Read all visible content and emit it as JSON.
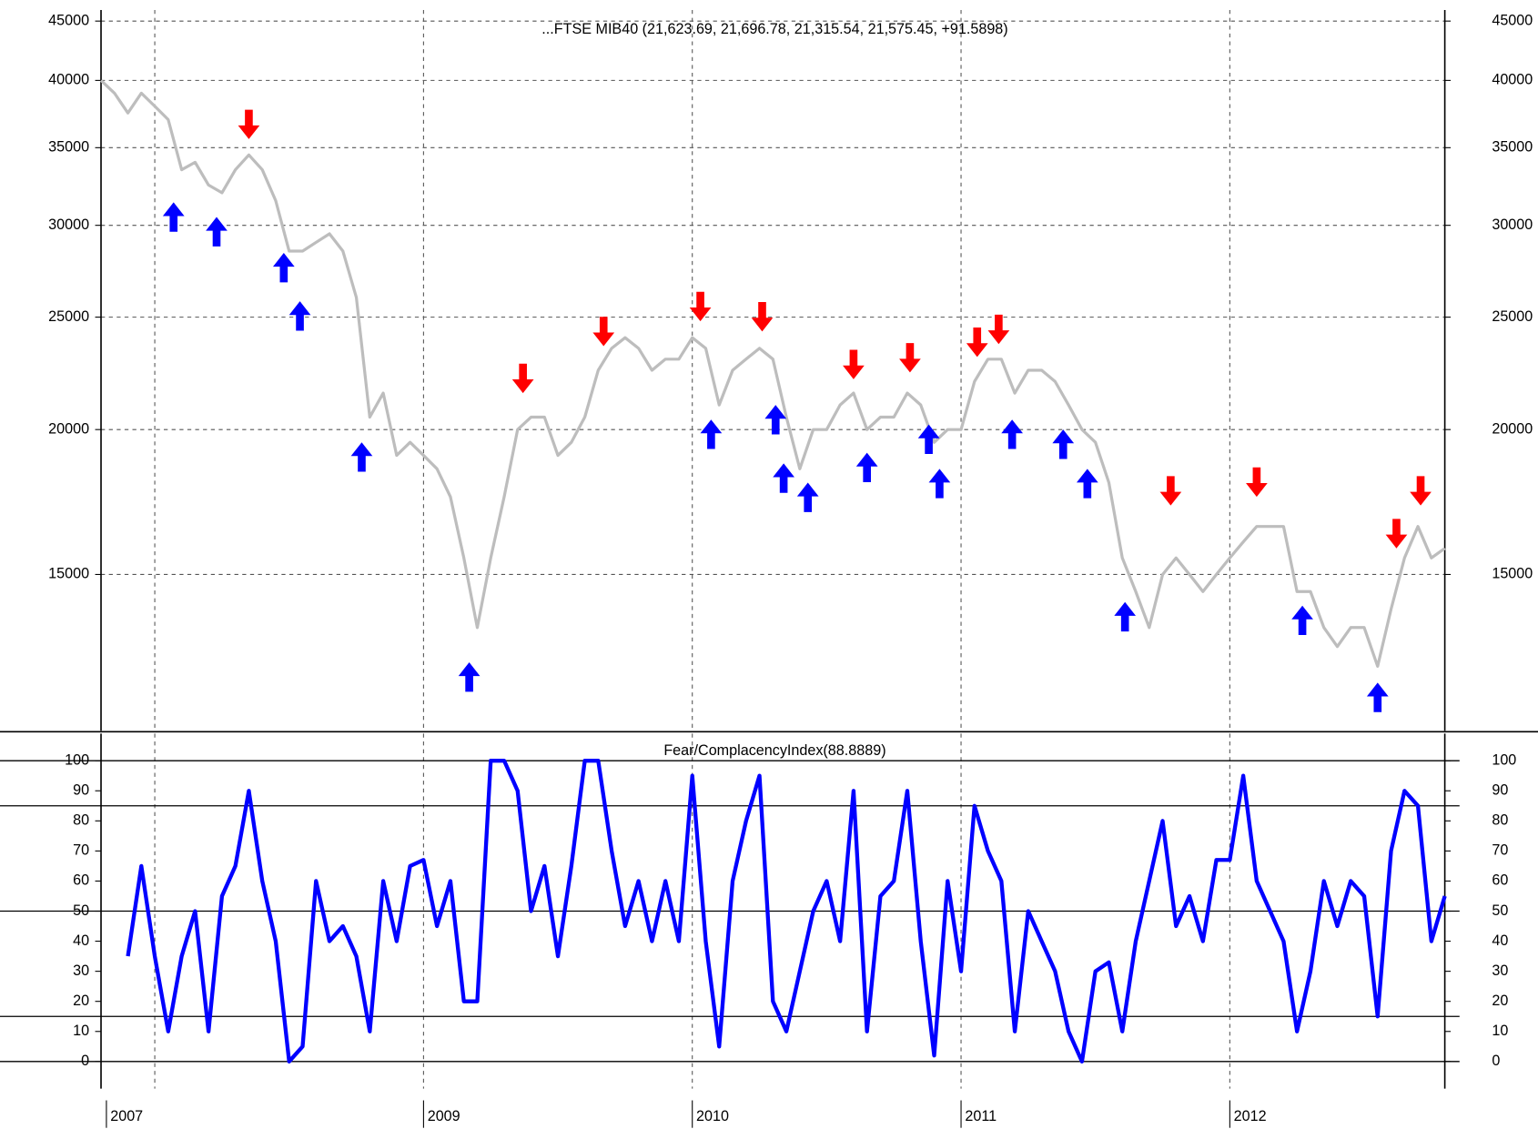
{
  "chart_data": [
    {
      "type": "line",
      "title": "...FTSE MIB40 (21,623.69, 21,696.78, 21,315.54, 21,575.45, +91.5898)",
      "log": true,
      "xlim": [
        2007.8,
        2012.8
      ],
      "ylim": [
        11000,
        46000
      ],
      "yticks": [
        15000,
        20000,
        25000,
        30000,
        35000,
        40000,
        45000
      ],
      "xgrid": [
        2008,
        2009,
        2010,
        2011,
        2012
      ],
      "grid": true,
      "x": [
        2007.8,
        2007.85,
        2007.9,
        2007.95,
        2008.0,
        2008.05,
        2008.1,
        2008.15,
        2008.2,
        2008.25,
        2008.3,
        2008.35,
        2008.4,
        2008.45,
        2008.5,
        2008.55,
        2008.6,
        2008.65,
        2008.7,
        2008.75,
        2008.8,
        2008.85,
        2008.9,
        2008.95,
        2009.0,
        2009.05,
        2009.1,
        2009.15,
        2009.2,
        2009.25,
        2009.3,
        2009.35,
        2009.4,
        2009.45,
        2009.5,
        2009.55,
        2009.6,
        2009.65,
        2009.7,
        2009.75,
        2009.8,
        2009.85,
        2009.9,
        2009.95,
        2010.0,
        2010.05,
        2010.1,
        2010.15,
        2010.2,
        2010.25,
        2010.3,
        2010.35,
        2010.4,
        2010.45,
        2010.5,
        2010.55,
        2010.6,
        2010.65,
        2010.7,
        2010.75,
        2010.8,
        2010.85,
        2010.9,
        2010.95,
        2011.0,
        2011.05,
        2011.1,
        2011.15,
        2011.2,
        2011.25,
        2011.3,
        2011.35,
        2011.4,
        2011.45,
        2011.5,
        2011.55,
        2011.6,
        2011.65,
        2011.7,
        2011.75,
        2011.8,
        2011.85,
        2011.9,
        2011.95,
        2012.0,
        2012.05,
        2012.1,
        2012.15,
        2012.2,
        2012.25,
        2012.3,
        2012.35,
        2012.4,
        2012.45,
        2012.5,
        2012.55,
        2012.6,
        2012.65,
        2012.7,
        2012.75,
        2012.8
      ],
      "series": [
        {
          "color": "#bdbdbd",
          "values": [
            40000,
            39000,
            37500,
            39000,
            38000,
            37000,
            33500,
            34000,
            32500,
            32000,
            33500,
            34500,
            33500,
            31500,
            28500,
            28500,
            29000,
            29500,
            28500,
            26000,
            20500,
            21500,
            19000,
            19500,
            19000,
            18500,
            17500,
            15500,
            13500,
            15500,
            17500,
            20000,
            20500,
            20500,
            19000,
            19500,
            20500,
            22500,
            23500,
            24000,
            23500,
            22500,
            23000,
            23000,
            24000,
            23500,
            21000,
            22500,
            23000,
            23500,
            23000,
            20500,
            18500,
            20000,
            20000,
            21000,
            21500,
            20000,
            20500,
            20500,
            21500,
            21000,
            19500,
            20000,
            20000,
            22000,
            23000,
            23000,
            21500,
            22500,
            22500,
            22000,
            21000,
            20000,
            19500,
            18000,
            15500,
            14500,
            13500,
            15000,
            15500,
            15000,
            14500,
            15000,
            15500,
            16000,
            16500,
            16500,
            16500,
            14500,
            14500,
            13500,
            13000,
            13500,
            13500,
            12500,
            14000,
            15500,
            16500,
            15500,
            15800
          ]
        }
      ],
      "buy_signals": {
        "color": "#0000ff",
        "x": [
          2008.07,
          2008.23,
          2008.48,
          2008.54,
          2008.77,
          2009.17,
          2010.07,
          2010.31,
          2010.34,
          2010.43,
          2010.65,
          2010.88,
          2010.92,
          2011.19,
          2011.38,
          2011.47,
          2011.61,
          2012.27,
          2012.55
        ],
        "values": [
          31400,
          30500,
          28400,
          25800,
          19500,
          12600,
          20400,
          21000,
          18700,
          18000,
          19100,
          20200,
          18500,
          20400,
          20000,
          18500,
          14200,
          14100,
          12100
        ]
      },
      "sell_signals": {
        "color": "#ff0000",
        "x": [
          2008.35,
          2009.37,
          2009.67,
          2010.03,
          2010.26,
          2010.6,
          2010.81,
          2011.06,
          2011.14,
          2011.78,
          2012.1,
          2012.62,
          2012.71
        ],
        "values": [
          35600,
          21500,
          23600,
          24800,
          24300,
          22100,
          22400,
          23100,
          23700,
          17200,
          17500,
          15800,
          17200
        ]
      }
    },
    {
      "type": "line",
      "title": "Fear/ComplacencyIndex(88.8889)",
      "xlim": [
        2007.8,
        2012.8
      ],
      "ylim": [
        -9,
        109
      ],
      "yticks": [
        0,
        10,
        20,
        30,
        40,
        50,
        60,
        70,
        80,
        90,
        100
      ],
      "hlines": [
        0,
        15,
        50,
        85,
        100
      ],
      "xgrid": [
        2008,
        2009,
        2010,
        2011,
        2012
      ],
      "xticks": [
        {
          "value": 2007.82,
          "label": "2007"
        },
        2009,
        2010,
        2011,
        2012
      ],
      "x": [
        2007.8,
        2007.85,
        2007.9,
        2007.95,
        2008.0,
        2008.05,
        2008.1,
        2008.15,
        2008.2,
        2008.25,
        2008.3,
        2008.35,
        2008.4,
        2008.45,
        2008.5,
        2008.55,
        2008.6,
        2008.65,
        2008.7,
        2008.75,
        2008.8,
        2008.85,
        2008.9,
        2008.95,
        2009.0,
        2009.05,
        2009.1,
        2009.15,
        2009.2,
        2009.25,
        2009.3,
        2009.35,
        2009.4,
        2009.45,
        2009.5,
        2009.55,
        2009.6,
        2009.65,
        2009.7,
        2009.75,
        2009.8,
        2009.85,
        2009.9,
        2009.95,
        2010.0,
        2010.05,
        2010.1,
        2010.15,
        2010.2,
        2010.25,
        2010.3,
        2010.35,
        2010.4,
        2010.45,
        2010.5,
        2010.55,
        2010.6,
        2010.65,
        2010.7,
        2010.75,
        2010.8,
        2010.85,
        2010.9,
        2010.95,
        2011.0,
        2011.05,
        2011.1,
        2011.15,
        2011.2,
        2011.25,
        2011.3,
        2011.35,
        2011.4,
        2011.45,
        2011.5,
        2011.55,
        2011.6,
        2011.65,
        2011.7,
        2011.75,
        2011.8,
        2011.85,
        2011.9,
        2011.95,
        2012.0,
        2012.05,
        2012.1,
        2012.15,
        2012.2,
        2012.25,
        2012.3,
        2012.35,
        2012.4,
        2012.45,
        2012.5,
        2012.55,
        2012.6,
        2012.65,
        2012.7,
        2012.75,
        2012.8
      ],
      "series": [
        {
          "color": "#0000ff",
          "values": [
            null,
            null,
            35,
            65,
            35,
            10,
            35,
            50,
            10,
            55,
            65,
            90,
            60,
            40,
            0,
            5,
            60,
            40,
            45,
            35,
            10,
            60,
            40,
            65,
            67,
            45,
            60,
            20,
            20,
            100,
            100,
            90,
            50,
            65,
            35,
            65,
            100,
            100,
            70,
            45,
            60,
            40,
            60,
            40,
            95,
            40,
            5,
            60,
            80,
            95,
            20,
            10,
            30,
            50,
            60,
            40,
            90,
            10,
            55,
            60,
            90,
            40,
            2,
            60,
            30,
            85,
            70,
            60,
            10,
            50,
            40,
            30,
            10,
            0,
            30,
            33,
            10,
            40,
            60,
            80,
            45,
            55,
            40,
            67,
            67,
            95,
            60,
            50,
            40,
            10,
            30,
            60,
            45,
            60,
            55,
            15,
            70,
            90,
            85,
            40,
            55
          ]
        }
      ]
    }
  ]
}
